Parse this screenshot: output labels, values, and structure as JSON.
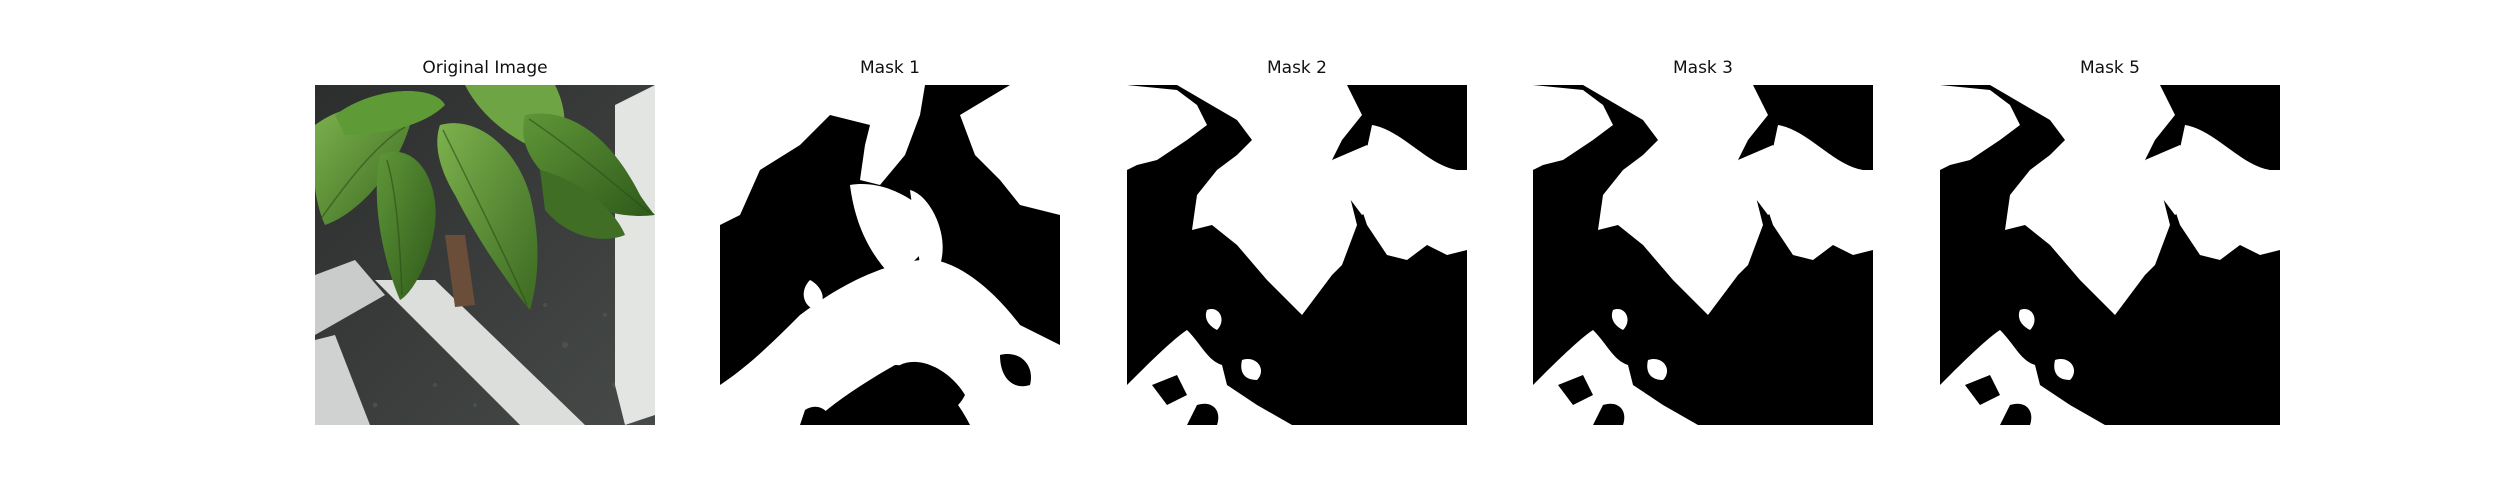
{
  "figure": {
    "panels": [
      {
        "title": "Original Image",
        "kind": "photo",
        "icon": "basil-plant-photo"
      },
      {
        "title": "Mask 1",
        "kind": "mask",
        "icon": "binary-mask-1"
      },
      {
        "title": "Mask 2",
        "kind": "mask",
        "icon": "binary-mask-2"
      },
      {
        "title": "Mask 3",
        "kind": "mask",
        "icon": "binary-mask-3"
      },
      {
        "title": "Mask 5",
        "kind": "mask",
        "icon": "binary-mask-5"
      }
    ]
  },
  "colors": {
    "mask_background": "#000000",
    "mask_foreground": "#ffffff",
    "leaf_dark": "#3f6e24",
    "leaf_light": "#6fa444",
    "floor": "#3a3d3c",
    "white_rail": "#d6d8d6"
  }
}
